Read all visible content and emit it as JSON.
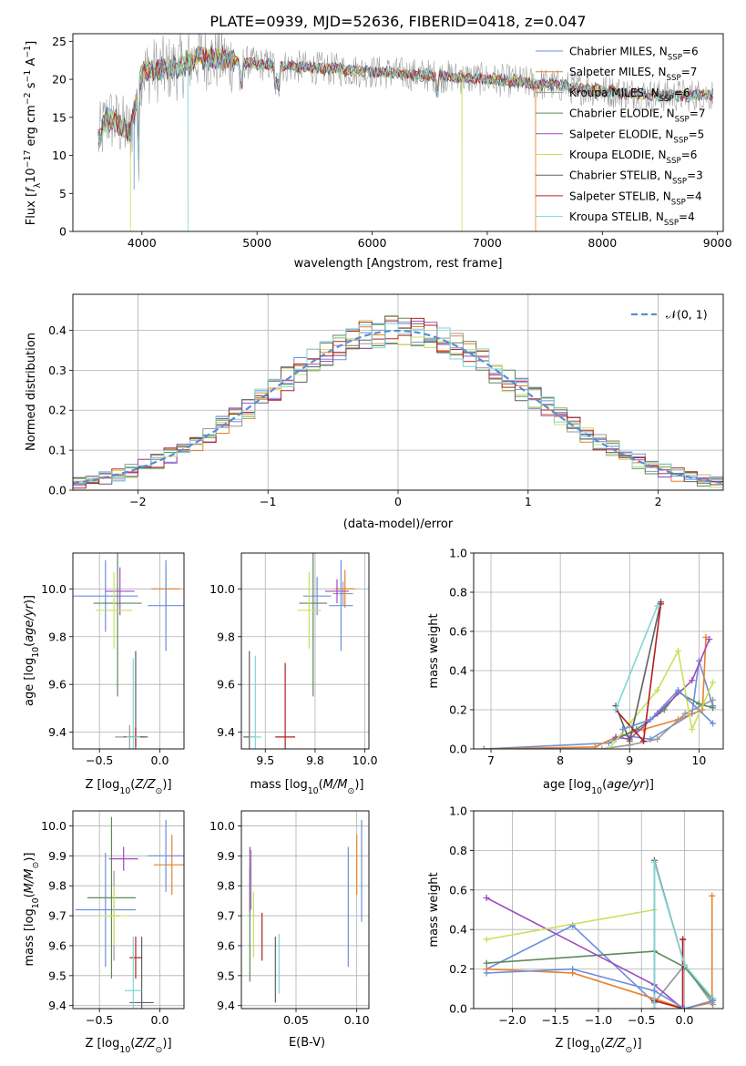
{
  "figure_title": "PLATE=0939, MJD=52636, FIBERID=0418, z=0.047",
  "colors": [
    "#6d8fdc",
    "#e8822a",
    "#9a9a9a",
    "#5c8a5c",
    "#a04ac0",
    "#c8e05c",
    "#606060",
    "#b22020",
    "#7fd6d6"
  ],
  "chart_data": [
    {
      "id": "spectrum",
      "type": "line",
      "xlabel": "wavelength [Angstrom, rest frame]",
      "ylabel": "Flux [f_λ10^-17 erg cm^-2 s^-1 A^-1]",
      "xlim": [
        3400,
        9050
      ],
      "ylim": [
        0,
        26
      ],
      "xticks": [
        4000,
        5000,
        6000,
        7000,
        8000,
        9000
      ],
      "yticks": [
        0,
        5,
        10,
        15,
        20,
        25
      ],
      "legend_position": "upper right",
      "series": [
        {
          "name": "Chabrier MILES, N_SSP=6"
        },
        {
          "name": "Salpeter MILES, N_SSP=7"
        },
        {
          "name": "Kroupa MILES, N_SSP=6"
        },
        {
          "name": "Chabrier ELODIE, N_SSP=7"
        },
        {
          "name": "Salpeter ELODIE, N_SSP=5"
        },
        {
          "name": "Kroupa ELODIE, N_SSP=6"
        },
        {
          "name": "Chabrier STELIB, N_SSP=3"
        },
        {
          "name": "Salpeter STELIB, N_SSP=4"
        },
        {
          "name": "Kroupa STELIB, N_SSP=4"
        }
      ],
      "data_range": [
        3620,
        8960
      ],
      "key_points": [
        [
          3620,
          12
        ],
        [
          3700,
          15
        ],
        [
          3900,
          13
        ],
        [
          4000,
          21
        ],
        [
          4300,
          21.5
        ],
        [
          4500,
          23
        ],
        [
          5000,
          22
        ],
        [
          5500,
          21.5
        ],
        [
          6000,
          21
        ],
        [
          6500,
          20.5
        ],
        [
          7000,
          20
        ],
        [
          7400,
          19.5
        ],
        [
          8000,
          18.5
        ],
        [
          8500,
          17.8
        ],
        [
          8960,
          18
        ]
      ]
    },
    {
      "id": "residuals",
      "type": "histogram",
      "xlabel": "(data-model)/error",
      "ylabel": "Normed distribution",
      "xlim": [
        -2.5,
        2.5
      ],
      "ylim": [
        0,
        0.49
      ],
      "xticks": [
        -2,
        -1,
        0,
        1,
        2
      ],
      "yticks": [
        0.0,
        0.1,
        0.2,
        0.3,
        0.4
      ],
      "grid": true,
      "legend_position": "upper right",
      "legend": "𝒩(0, 1)",
      "bin_width": 0.1
    },
    {
      "id": "age-vs-Z",
      "type": "scatter",
      "xlabel": "Z [log10(Z/Z⊙)]",
      "ylabel": "age  [log10(age/yr)]",
      "xlim": [
        -0.72,
        0.2
      ],
      "ylim": [
        9.33,
        10.15
      ],
      "xticks": [
        -0.5,
        0.0
      ],
      "yticks": [
        9.4,
        9.6,
        9.8,
        10.0
      ],
      "grid": true,
      "points": [
        {
          "x": -0.45,
          "y": 9.97,
          "xerr": 0.27,
          "yerr": 0.15
        },
        {
          "x": 0.05,
          "y": 10.0,
          "xerr": 0.12,
          "yerr": 0.08
        },
        {
          "x": -0.25,
          "y": 9.38,
          "xerr": 0.12,
          "yerr": 0.05
        },
        {
          "x": -0.35,
          "y": 9.94,
          "xerr": 0.2,
          "yerr": 0.39
        },
        {
          "x": -0.33,
          "y": 9.99,
          "xerr": 0.12,
          "yerr": 0.1
        },
        {
          "x": -0.38,
          "y": 9.91,
          "xerr": 0.15,
          "yerr": 0.16
        },
        {
          "x": -0.2,
          "y": 9.38,
          "xerr": 0.1,
          "yerr": 0.36
        },
        {
          "x": -0.2,
          "y": 9.38,
          "xerr": 0.05,
          "yerr": 0.04
        },
        {
          "x": -0.22,
          "y": 9.38,
          "xerr": 0.06,
          "yerr": 0.33
        },
        {
          "x": 0.05,
          "y": 9.93,
          "xerr": 0.15,
          "yerr": 0.19
        }
      ]
    },
    {
      "id": "age-vs-mass",
      "type": "scatter",
      "xlabel": "mass [log10(M/M⊙)]",
      "ylabel": "",
      "xlim": [
        9.38,
        10.02
      ],
      "ylim": [
        9.33,
        10.15
      ],
      "xticks": [
        9.5,
        9.75,
        10.0
      ],
      "yticks": [
        9.4,
        9.6,
        9.8,
        10.0
      ],
      "grid": true,
      "points": [
        {
          "x": 9.76,
          "y": 9.97,
          "xerr": 0.07,
          "yerr": 0.08
        },
        {
          "x": 9.9,
          "y": 10.0,
          "xerr": 0.05,
          "yerr": 0.08
        },
        {
          "x": 9.89,
          "y": 9.98,
          "xerr": 0.05,
          "yerr": 0.05
        },
        {
          "x": 9.74,
          "y": 9.94,
          "xerr": 0.07,
          "yerr": 0.39
        },
        {
          "x": 9.86,
          "y": 9.99,
          "xerr": 0.06,
          "yerr": 0.05
        },
        {
          "x": 9.72,
          "y": 9.91,
          "xerr": 0.06,
          "yerr": 0.16
        },
        {
          "x": 9.42,
          "y": 9.38,
          "xerr": 0.03,
          "yerr": 0.36
        },
        {
          "x": 9.6,
          "y": 9.38,
          "xerr": 0.05,
          "yerr": 0.31
        },
        {
          "x": 9.45,
          "y": 9.38,
          "xerr": 0.03,
          "yerr": 0.34
        },
        {
          "x": 9.88,
          "y": 9.93,
          "xerr": 0.06,
          "yerr": 0.19
        }
      ]
    },
    {
      "id": "weights-vs-age",
      "type": "line",
      "xlabel": "age  [log10(age/yr)]",
      "ylabel": "mass weight",
      "xlim": [
        6.75,
        10.35
      ],
      "ylim": [
        0,
        1.0
      ],
      "xticks": [
        7,
        8,
        9,
        10
      ],
      "yticks": [
        0.0,
        0.2,
        0.4,
        0.6,
        0.8,
        1.0
      ],
      "grid": true,
      "series": [
        {
          "x": [
            6.9,
            8.7,
            8.9,
            9.3,
            9.9,
            10.0,
            10.2
          ],
          "y": [
            0.0,
            0.03,
            0.07,
            0.05,
            0.18,
            0.45,
            0.22
          ]
        },
        {
          "x": [
            6.9,
            8.5,
            8.8,
            9.2,
            9.7,
            10.05,
            10.1
          ],
          "y": [
            0.0,
            0.01,
            0.06,
            0.1,
            0.15,
            0.2,
            0.57
          ]
        },
        {
          "x": [
            6.9,
            8.6,
            9.0,
            9.4,
            9.8,
            10.2
          ],
          "y": [
            0.0,
            0.0,
            0.02,
            0.05,
            0.18,
            0.25
          ]
        },
        {
          "x": [
            8.8,
            9.1,
            9.5,
            9.7,
            10.0,
            10.2
          ],
          "y": [
            0.05,
            0.1,
            0.2,
            0.29,
            0.23,
            0.21
          ]
        },
        {
          "x": [
            8.8,
            9.0,
            9.4,
            9.9,
            10.15
          ],
          "y": [
            0.06,
            0.05,
            0.18,
            0.35,
            0.56
          ]
        },
        {
          "x": [
            8.7,
            9.0,
            9.4,
            9.7,
            9.9,
            10.2
          ],
          "y": [
            0.0,
            0.13,
            0.3,
            0.5,
            0.1,
            0.34
          ]
        },
        {
          "x": [
            8.8,
            9.0,
            9.45
          ],
          "y": [
            0.22,
            0.04,
            0.75
          ]
        },
        {
          "x": [
            8.8,
            9.2,
            9.45
          ],
          "y": [
            0.2,
            0.04,
            0.74
          ]
        },
        {
          "x": [
            8.8,
            9.4
          ],
          "y": [
            0.2,
            0.73
          ]
        },
        {
          "x": [
            8.9,
            9.3,
            9.7,
            10.2
          ],
          "y": [
            0.1,
            0.15,
            0.3,
            0.13
          ]
        }
      ]
    },
    {
      "id": "mass-vs-Z",
      "type": "scatter",
      "xlabel": "Z [log10(Z/Z⊙)]",
      "ylabel": "mass [log10(M/M⊙)]",
      "xlim": [
        -0.72,
        0.2
      ],
      "ylim": [
        9.39,
        10.05
      ],
      "xticks": [
        -0.5,
        0.0
      ],
      "yticks": [
        9.4,
        9.5,
        9.6,
        9.7,
        9.8,
        9.9,
        10.0
      ],
      "grid": true,
      "points": [
        {
          "x": -0.45,
          "y": 9.72,
          "xerr": 0.25,
          "yerr": 0.19
        },
        {
          "x": 0.1,
          "y": 9.87,
          "xerr": 0.15,
          "yerr": 0.1
        },
        {
          "x": -0.38,
          "y": 9.7,
          "xerr": 0.05,
          "yerr": 0.15
        },
        {
          "x": -0.4,
          "y": 9.76,
          "xerr": 0.2,
          "yerr": 0.27
        },
        {
          "x": -0.3,
          "y": 9.89,
          "xerr": 0.12,
          "yerr": 0.04
        },
        {
          "x": -0.38,
          "y": 9.7,
          "xerr": 0.12,
          "yerr": 0.1
        },
        {
          "x": -0.15,
          "y": 9.41,
          "xerr": 0.1,
          "yerr": 0.22
        },
        {
          "x": -0.2,
          "y": 9.56,
          "xerr": 0.05,
          "yerr": 0.07
        },
        {
          "x": -0.22,
          "y": 9.45,
          "xerr": 0.07,
          "yerr": 0.18
        },
        {
          "x": 0.05,
          "y": 9.9,
          "xerr": 0.15,
          "yerr": 0.12
        }
      ]
    },
    {
      "id": "mass-vs-EBV",
      "type": "scatter",
      "xlabel": "E(B-V)",
      "ylabel": "",
      "xlim": [
        0.005,
        0.11
      ],
      "ylim": [
        9.39,
        10.05
      ],
      "xticks": [
        0.05,
        0.1
      ],
      "yticks": [
        9.4,
        9.5,
        9.6,
        9.7,
        9.8,
        9.9,
        10.0
      ],
      "grid": true,
      "points": [
        {
          "x": 0.093,
          "y": 9.73,
          "xerr": 0.0,
          "yerr": 0.2
        },
        {
          "x": 0.1,
          "y": 9.87,
          "xerr": 0.0,
          "yerr": 0.1
        },
        {
          "x": 0.013,
          "y": 9.82,
          "xerr": 0.0,
          "yerr": 0.1
        },
        {
          "x": 0.012,
          "y": 9.67,
          "xerr": 0.0,
          "yerr": 0.19
        },
        {
          "x": 0.012,
          "y": 9.82,
          "xerr": 0.0,
          "yerr": 0.11
        },
        {
          "x": 0.015,
          "y": 9.67,
          "xerr": 0.0,
          "yerr": 0.11
        },
        {
          "x": 0.033,
          "y": 9.52,
          "xerr": 0.0,
          "yerr": 0.11
        },
        {
          "x": 0.022,
          "y": 9.63,
          "xerr": 0.0,
          "yerr": 0.08
        },
        {
          "x": 0.036,
          "y": 9.54,
          "xerr": 0.0,
          "yerr": 0.1
        },
        {
          "x": 0.104,
          "y": 9.85,
          "xerr": 0.0,
          "yerr": 0.17
        }
      ]
    },
    {
      "id": "weights-vs-Z",
      "type": "line",
      "xlabel": "Z [log10(Z/Z⊙)]",
      "ylabel": "mass weight",
      "xlim": [
        -2.45,
        0.45
      ],
      "ylim": [
        0,
        1.0
      ],
      "xticks": [
        -2.0,
        -1.5,
        -1.0,
        -0.5,
        0.0
      ],
      "yticks": [
        0.0,
        0.2,
        0.4,
        0.6,
        0.8,
        1.0
      ],
      "grid": true,
      "series": [
        {
          "x": [
            -2.3,
            -1.3,
            -0.35,
            0.0,
            0.33
          ],
          "y": [
            0.2,
            0.42,
            0.03,
            0.22,
            0.04
          ]
        },
        {
          "x": [
            -2.3,
            -1.3,
            -0.35,
            0.0,
            0.32,
            0.32
          ],
          "y": [
            0.2,
            0.18,
            0.05,
            0.0,
            0.03,
            0.57
          ]
        },
        {
          "x": [
            -0.35,
            0.0,
            0.33
          ],
          "y": [
            0.03,
            0.22,
            0.02
          ]
        },
        {
          "x": [
            -2.3,
            -0.35,
            0.0,
            0.33
          ],
          "y": [
            0.23,
            0.29,
            0.21,
            0.04
          ]
        },
        {
          "x": [
            -2.3,
            -0.35,
            -0.02,
            -0.02
          ],
          "y": [
            0.56,
            0.12,
            0.0,
            0.35
          ]
        },
        {
          "x": [
            -2.3,
            -0.35
          ],
          "y": [
            0.35,
            0.5
          ]
        },
        {
          "x": [
            -0.35,
            -0.35,
            0.0,
            0.33
          ],
          "y": [
            0.0,
            0.75,
            0.22,
            0.05
          ]
        },
        {
          "x": [
            -0.35,
            -0.02,
            -0.02
          ],
          "y": [
            0.04,
            0.0,
            0.35
          ]
        },
        {
          "x": [
            -0.35,
            -0.35,
            0.0,
            0.33
          ],
          "y": [
            0.0,
            0.74,
            0.22,
            0.05
          ]
        },
        {
          "x": [
            -2.3,
            -1.3,
            -0.35,
            0.0,
            0.33
          ],
          "y": [
            0.18,
            0.2,
            0.09,
            0.0,
            0.04
          ]
        }
      ]
    }
  ]
}
